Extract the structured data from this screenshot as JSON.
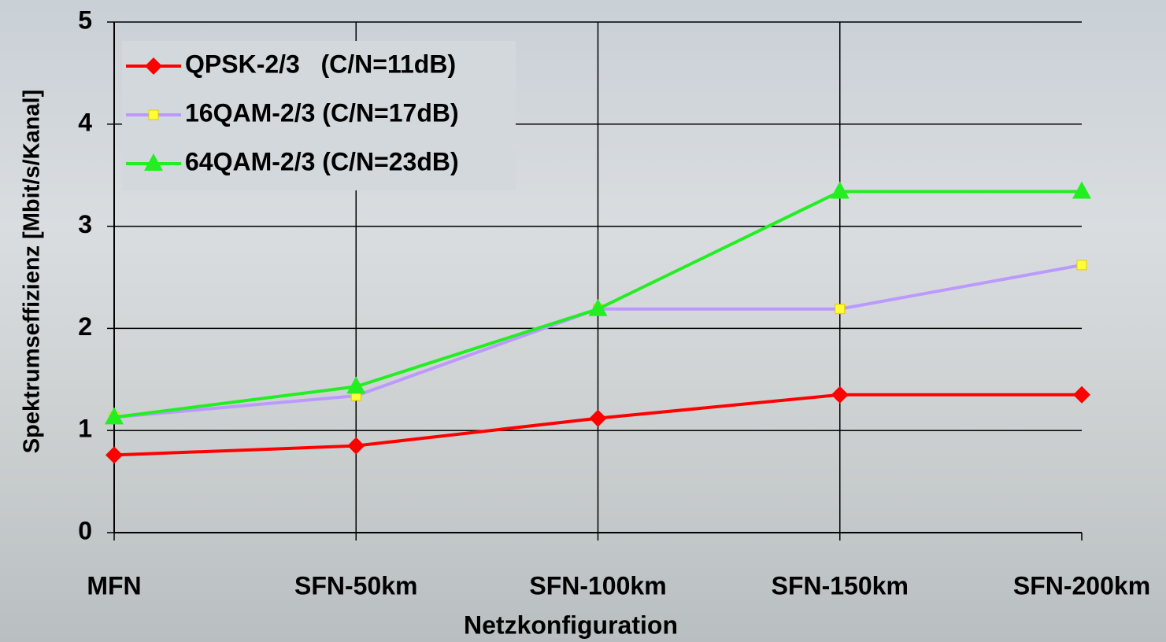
{
  "chart_data": {
    "type": "line",
    "x_label": "Netzkonfiguration",
    "y_label": "Spektrumseffizienz [Mbit/s/Kanal]",
    "categories": [
      "MFN",
      "SFN-50km",
      "SFN-100km",
      "SFN-150km",
      "SFN-200km"
    ],
    "series": [
      {
        "name": "QPSK-2/3   (C/N=11dB)",
        "color": "#ff0000",
        "marker": "diamond",
        "values": [
          0.76,
          0.85,
          1.12,
          1.35,
          1.35
        ]
      },
      {
        "name": "16QAM-2/3 (C/N=17dB)",
        "color": "#bb99ff",
        "marker": "square",
        "values": [
          1.13,
          1.34,
          2.19,
          2.19,
          2.62
        ]
      },
      {
        "name": "64QAM-2/3 (C/N=23dB)",
        "color": "#22ee22",
        "marker": "triangle",
        "values": [
          1.13,
          1.43,
          2.19,
          3.34,
          3.34
        ]
      }
    ],
    "ylim": [
      0,
      5
    ],
    "yticks": [
      0,
      1,
      2,
      3,
      4,
      5
    ],
    "grid": true,
    "legend": "top-left"
  }
}
